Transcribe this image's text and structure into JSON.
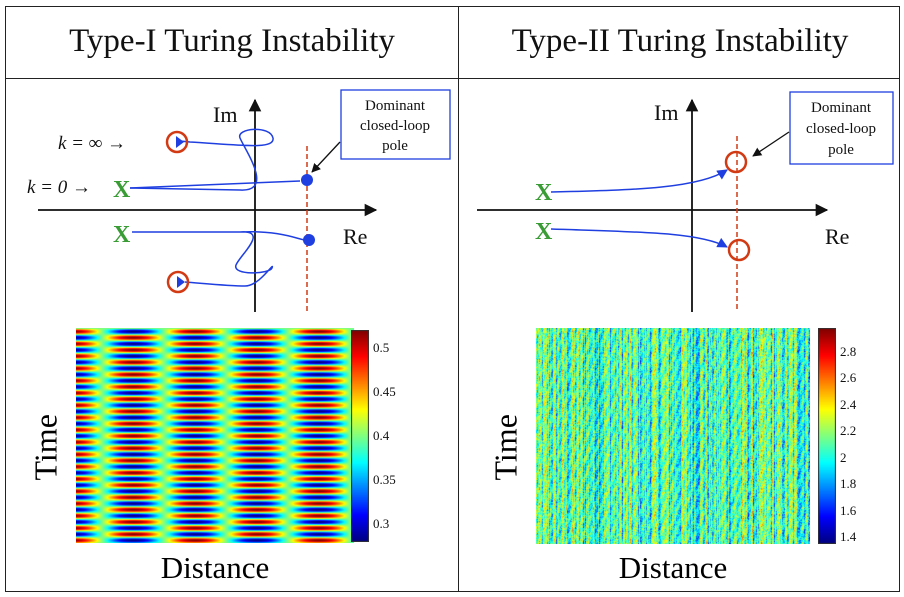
{
  "titles": {
    "type1": "Type-I Turing Instability",
    "type2": "Type-II Turing Instability"
  },
  "root_locus": {
    "axis_im": "Im",
    "axis_re": "Re",
    "annotation": [
      "Dominant",
      "closed-loop",
      "pole"
    ],
    "k_inf_label": "k = ∞ →",
    "k_zero_label": "k = 0 →",
    "open_loop_pole_symbol": "X"
  },
  "heatmaps": {
    "y_label": "Time",
    "x_label": "Distance"
  },
  "colors": {
    "pole_marker": "#3a9c35",
    "locus_line": "#1f3fe0",
    "zero_circle": "#d23a14",
    "dashed_line": "#d23a14",
    "text": "#111111"
  },
  "chart_data": [
    {
      "type": "heatmap",
      "panel": "Type-I",
      "xlabel": "Distance",
      "ylabel": "Time",
      "colorbar": {
        "ticks": [
          0.3,
          0.35,
          0.4,
          0.45,
          0.5
        ],
        "range": [
          0.28,
          0.52
        ],
        "colormap": "jet"
      },
      "pattern": "stationary periodic stripes in space, alternating rows in time"
    },
    {
      "type": "heatmap",
      "panel": "Type-II",
      "xlabel": "Distance",
      "ylabel": "Time",
      "colorbar": {
        "ticks": [
          1.4,
          1.6,
          1.8,
          2,
          2.2,
          2.4,
          2.6,
          2.8
        ],
        "range": [
          1.35,
          2.98
        ],
        "colormap": "jet"
      },
      "pattern": "noisy vertical streaks"
    }
  ]
}
